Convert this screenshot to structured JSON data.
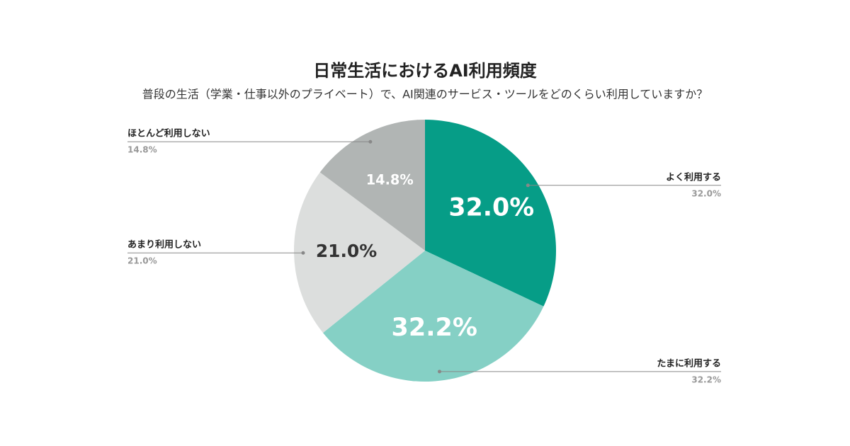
{
  "chart_data": {
    "type": "pie",
    "title": "日常生活におけるAI利用頻度",
    "subtitle": "普段の生活（学業・仕事以外のプライベート）で、AI関連のサービス・ツールをどのくらい利用していますか？",
    "categories": [
      "よく利用する",
      "たまに利用する",
      "あまり利用しない",
      "ほとんど利用しない"
    ],
    "values": [
      32.0,
      32.2,
      21.0,
      14.8
    ],
    "value_labels": [
      "32.0%",
      "32.2%",
      "21.0%",
      "14.8%"
    ],
    "colors": [
      "#069d87",
      "#85d0c5",
      "#dcdedd",
      "#b1b5b4"
    ]
  }
}
